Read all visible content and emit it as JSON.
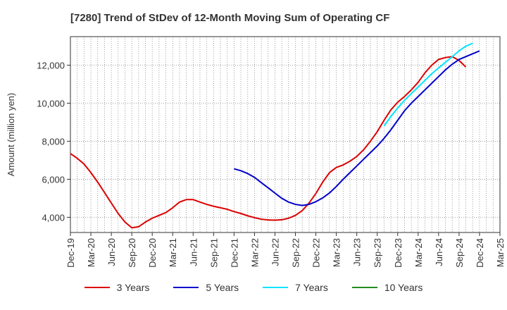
{
  "chart_data": {
    "type": "line",
    "title": "[7280]  Trend of StDev of 12-Month Moving Sum of Operating CF",
    "ylabel": "Amount (million yen)",
    "xlabel": "",
    "ylim": [
      3200,
      13500
    ],
    "yticks": [
      4000,
      6000,
      8000,
      10000,
      12000
    ],
    "ytick_labels": [
      "4,000",
      "6,000",
      "8,000",
      "10,000",
      "12,000"
    ],
    "x_tick_labels": [
      "Dec-19",
      "Mar-20",
      "Jun-20",
      "Sep-20",
      "Dec-20",
      "Mar-21",
      "Jun-21",
      "Sep-21",
      "Dec-21",
      "Mar-22",
      "Jun-22",
      "Sep-22",
      "Dec-22",
      "Mar-23",
      "Jun-23",
      "Sep-23",
      "Dec-23",
      "Mar-24",
      "Jun-24",
      "Sep-24",
      "Dec-24",
      "Mar-25"
    ],
    "grid": true,
    "legend_position": "bottom",
    "series": [
      {
        "name": "3 Years",
        "color": "#dd0000",
        "values": [
          7350,
          7100,
          6800,
          6350,
          5850,
          5300,
          4750,
          4200,
          3750,
          3450,
          3500,
          3750,
          3950,
          4100,
          4250,
          4500,
          4800,
          4930,
          4930,
          4800,
          4680,
          4580,
          4500,
          4420,
          4300,
          4200,
          4080,
          3980,
          3900,
          3860,
          3850,
          3870,
          3950,
          4100,
          4350,
          4750,
          5250,
          5850,
          6350,
          6620,
          6750,
          6950,
          7200,
          7550,
          8000,
          8500,
          9100,
          9650,
          10050,
          10350,
          10700,
          11100,
          11600,
          12000,
          12300,
          12400,
          12450,
          12250,
          11900
        ]
      },
      {
        "name": "5 Years",
        "color": "#0000cc",
        "values": [
          null,
          null,
          null,
          null,
          null,
          null,
          null,
          null,
          null,
          null,
          null,
          null,
          null,
          null,
          null,
          null,
          null,
          null,
          null,
          null,
          null,
          null,
          null,
          null,
          6550,
          6450,
          6300,
          6100,
          5820,
          5550,
          5270,
          5000,
          4800,
          4680,
          4620,
          4680,
          4820,
          5020,
          5280,
          5620,
          6000,
          6350,
          6700,
          7050,
          7400,
          7750,
          8150,
          8600,
          9100,
          9600,
          10000,
          10350,
          10700,
          11050,
          11400,
          11750,
          12050,
          12300,
          12450,
          12600,
          12750
        ]
      },
      {
        "name": "7 Years",
        "color": "#00e5ff",
        "values": [
          null,
          null,
          null,
          null,
          null,
          null,
          null,
          null,
          null,
          null,
          null,
          null,
          null,
          null,
          null,
          null,
          null,
          null,
          null,
          null,
          null,
          null,
          null,
          null,
          null,
          null,
          null,
          null,
          null,
          null,
          null,
          null,
          null,
          null,
          null,
          null,
          null,
          null,
          null,
          null,
          null,
          null,
          null,
          null,
          null,
          null,
          8800,
          9300,
          9750,
          10150,
          10500,
          10850,
          11200,
          11550,
          11850,
          12150,
          12450,
          12750,
          13000,
          13150
        ]
      },
      {
        "name": "10 Years",
        "color": "#228b22",
        "values": []
      }
    ]
  }
}
